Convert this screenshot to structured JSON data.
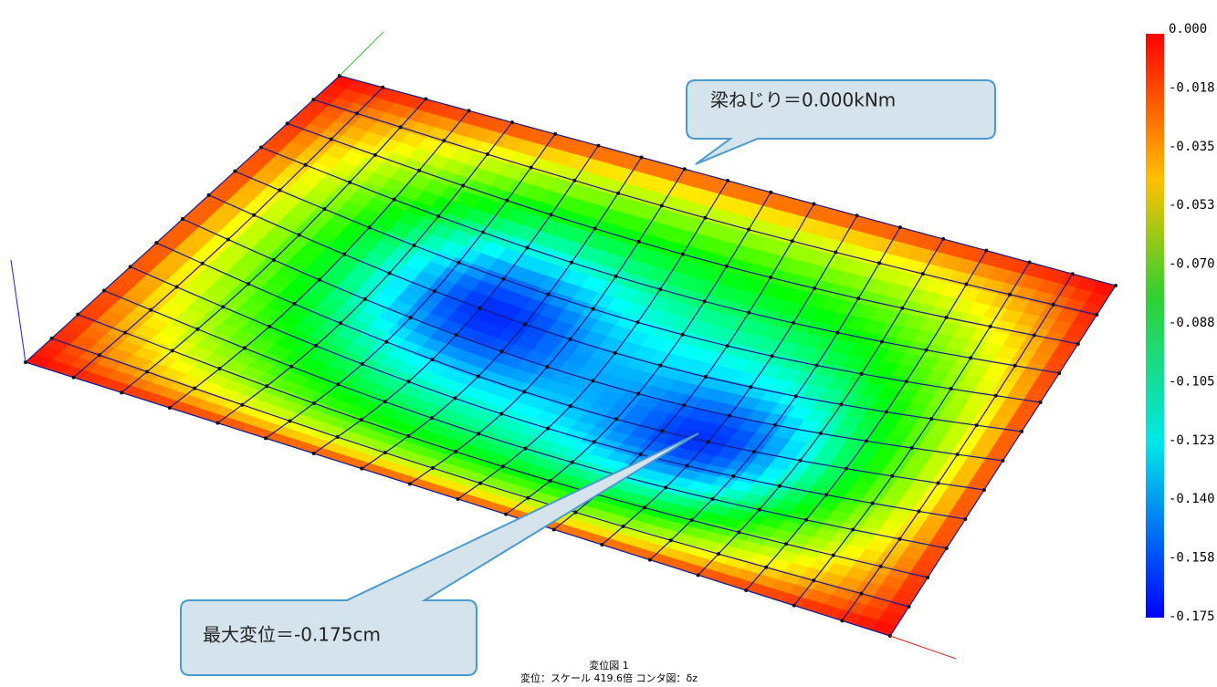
{
  "callouts": {
    "torsion": "梁ねじり＝0.000kNm",
    "max_displacement": "最大変位＝-0.175cm"
  },
  "legend": {
    "labels": [
      "0.000",
      "-0.018",
      "-0.035",
      "-0.053",
      "-0.070",
      "-0.088",
      "-0.105",
      "-0.123",
      "-0.140",
      "-0.158",
      "-0.175"
    ]
  },
  "caption": {
    "line1": "変位図 1",
    "line2": "変位：スケール 419.6倍 コンタ図：δz"
  }
}
